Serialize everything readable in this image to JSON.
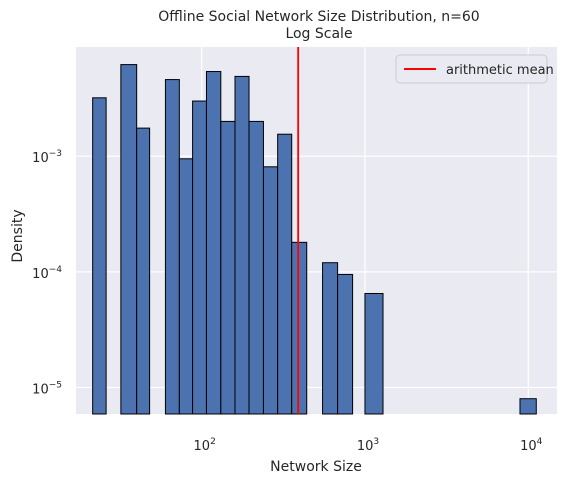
{
  "chart_data": {
    "type": "bar",
    "title": "Offline Social Network Size Distribution, n=60",
    "subtitle": "Log Scale",
    "xlabel": "Network Size",
    "ylabel": "Density",
    "xscale": "log",
    "yscale": "log",
    "xlim": [
      17,
      15000
    ],
    "ylim": [
      5.9e-06,
      0.0088
    ],
    "x_ticks": [
      100,
      1000,
      10000
    ],
    "x_tick_labels": [
      {
        "base": "10",
        "exp": "2"
      },
      {
        "base": "10",
        "exp": "3"
      },
      {
        "base": "10",
        "exp": "4"
      }
    ],
    "y_ticks": [
      1e-05,
      0.0001,
      0.001
    ],
    "y_tick_labels": [
      {
        "base": "10",
        "exp": "−5"
      },
      {
        "base": "10",
        "exp": "−4"
      },
      {
        "base": "10",
        "exp": "−3"
      }
    ],
    "bins": [
      {
        "x0": 21.5,
        "x1": 26.0,
        "value": 0.0032
      },
      {
        "x0": 32.0,
        "x1": 40.0,
        "value": 0.0062
      },
      {
        "x0": 40.0,
        "x1": 48.0,
        "value": 0.00175
      },
      {
        "x0": 60.0,
        "x1": 73.0,
        "value": 0.0046
      },
      {
        "x0": 73.0,
        "x1": 88.0,
        "value": 0.00095
      },
      {
        "x0": 88.0,
        "x1": 107.0,
        "value": 0.003
      },
      {
        "x0": 107.0,
        "x1": 131.0,
        "value": 0.0054
      },
      {
        "x0": 131.0,
        "x1": 160.0,
        "value": 0.002
      },
      {
        "x0": 160.0,
        "x1": 195.0,
        "value": 0.0049
      },
      {
        "x0": 195.0,
        "x1": 239.0,
        "value": 0.002
      },
      {
        "x0": 239.0,
        "x1": 292.0,
        "value": 0.00081
      },
      {
        "x0": 292.0,
        "x1": 356.0,
        "value": 0.00155
      },
      {
        "x0": 356.0,
        "x1": 440.0,
        "value": 0.00018
      },
      {
        "x0": 550.0,
        "x1": 680.0,
        "value": 0.00012
      },
      {
        "x0": 680.0,
        "x1": 840.0,
        "value": 9.5e-05
      },
      {
        "x0": 1000.0,
        "x1": 1290.0,
        "value": 6.5e-05
      },
      {
        "x0": 8900.0,
        "x1": 11200.0,
        "value": 8e-06
      }
    ],
    "mean_line": {
      "x": 390,
      "label": "arithmetic mean",
      "color": "#ff0000"
    },
    "bar_color": "#4c72b0",
    "bar_edge_color": "#000000",
    "background": "#eaeaf2",
    "grid": true,
    "grid_color": "#ffffff",
    "legend_position": "top-right"
  }
}
